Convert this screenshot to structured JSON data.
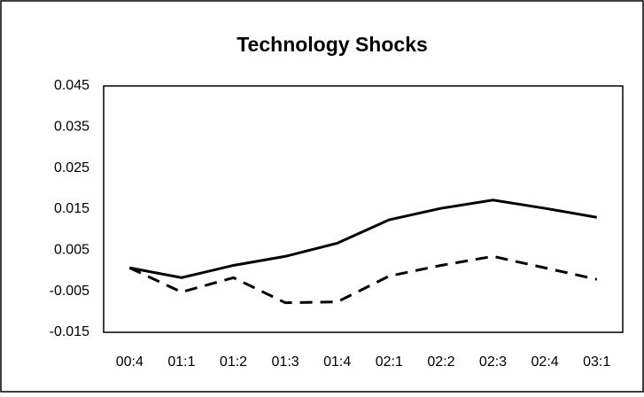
{
  "chart_data": {
    "type": "line",
    "title": "Technology Shocks",
    "categories": [
      "00:4",
      "01:1",
      "01:2",
      "01:3",
      "01:4",
      "02:1",
      "02:2",
      "02:3",
      "02:4",
      "03:1"
    ],
    "series": [
      {
        "color": "#000000",
        "dashed": false,
        "values": [
          0.0007,
          -0.0017,
          0.0013,
          0.0035,
          0.0067,
          0.0124,
          0.0152,
          0.0172,
          0.0152,
          0.013
        ]
      },
      {
        "color": "#000000",
        "dashed": true,
        "values": [
          0.0007,
          -0.0052,
          -0.0017,
          -0.0078,
          -0.0076,
          -0.0013,
          0.0013,
          0.0035,
          0.0007,
          -0.0021
        ]
      }
    ],
    "ylim": [
      -0.015,
      0.045
    ],
    "yticks": [
      -0.015,
      -0.005,
      0.005,
      0.015,
      0.025,
      0.035,
      0.045
    ],
    "grid": false
  }
}
